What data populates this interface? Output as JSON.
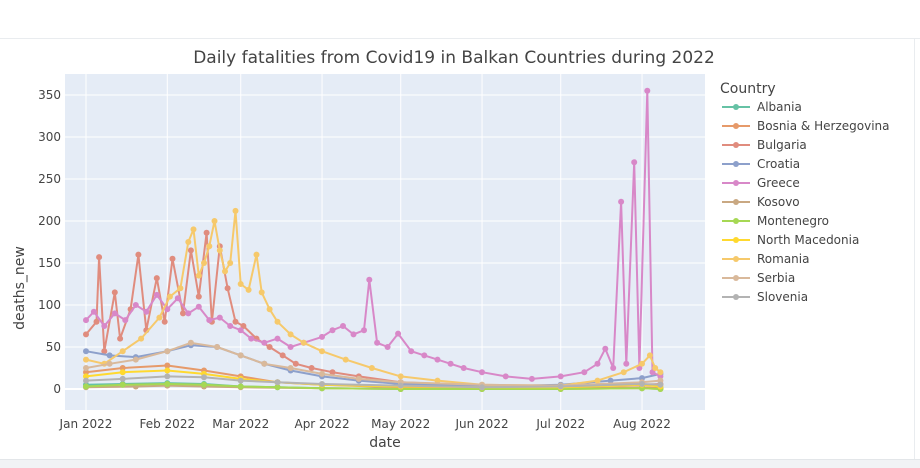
{
  "chart_data": {
    "type": "line",
    "title": "Daily fatalities from Covid19 in Balkan Countries during 2022",
    "xlabel": "date",
    "ylabel": "deaths_new",
    "ylim": [
      -25,
      375
    ],
    "xlim": [
      "2021-12-24",
      "2022-08-25"
    ],
    "yticks": [
      0,
      50,
      100,
      150,
      200,
      250,
      300,
      350
    ],
    "xticks": [
      {
        "date": "2022-01-01",
        "label": "Jan 2022"
      },
      {
        "date": "2022-02-01",
        "label": "Feb 2022"
      },
      {
        "date": "2022-03-01",
        "label": "Mar 2022"
      },
      {
        "date": "2022-04-01",
        "label": "Apr 2022"
      },
      {
        "date": "2022-05-01",
        "label": "May 2022"
      },
      {
        "date": "2022-06-01",
        "label": "Jun 2022"
      },
      {
        "date": "2022-07-01",
        "label": "Jul 2022"
      },
      {
        "date": "2022-08-01",
        "label": "Aug 2022"
      }
    ],
    "grid": true,
    "legend_title": "Country",
    "legend_position": "right",
    "plot_bg": "#e5ecf6",
    "series": [
      {
        "name": "Albania",
        "color": "#66c2a5",
        "points": [
          [
            "2022-01-01",
            5
          ],
          [
            "2022-01-15",
            6
          ],
          [
            "2022-02-01",
            7
          ],
          [
            "2022-02-15",
            6
          ],
          [
            "2022-03-01",
            3
          ],
          [
            "2022-03-15",
            2
          ],
          [
            "2022-04-01",
            1
          ],
          [
            "2022-05-01",
            0
          ],
          [
            "2022-06-01",
            0
          ],
          [
            "2022-07-01",
            1
          ],
          [
            "2022-08-01",
            1
          ],
          [
            "2022-08-08",
            1
          ]
        ]
      },
      {
        "name": "Bosnia & Herzegovina",
        "color": "#e69a6a",
        "points": [
          [
            "2022-01-01",
            20
          ],
          [
            "2022-01-15",
            25
          ],
          [
            "2022-02-01",
            28
          ],
          [
            "2022-02-15",
            22
          ],
          [
            "2022-03-01",
            15
          ],
          [
            "2022-03-15",
            8
          ],
          [
            "2022-04-01",
            5
          ],
          [
            "2022-05-01",
            2
          ],
          [
            "2022-06-01",
            1
          ],
          [
            "2022-07-01",
            1
          ],
          [
            "2022-08-01",
            2
          ],
          [
            "2022-08-08",
            1
          ]
        ]
      },
      {
        "name": "Bulgaria",
        "color": "#e08c7e",
        "points": [
          [
            "2022-01-01",
            65
          ],
          [
            "2022-01-05",
            80
          ],
          [
            "2022-01-06",
            157
          ],
          [
            "2022-01-08",
            45
          ],
          [
            "2022-01-12",
            115
          ],
          [
            "2022-01-14",
            60
          ],
          [
            "2022-01-18",
            95
          ],
          [
            "2022-01-21",
            160
          ],
          [
            "2022-01-24",
            70
          ],
          [
            "2022-01-28",
            132
          ],
          [
            "2022-01-31",
            80
          ],
          [
            "2022-02-03",
            155
          ],
          [
            "2022-02-07",
            90
          ],
          [
            "2022-02-10",
            165
          ],
          [
            "2022-02-13",
            110
          ],
          [
            "2022-02-16",
            186
          ],
          [
            "2022-02-18",
            80
          ],
          [
            "2022-02-21",
            170
          ],
          [
            "2022-02-24",
            120
          ],
          [
            "2022-02-27",
            80
          ],
          [
            "2022-03-02",
            75
          ],
          [
            "2022-03-07",
            60
          ],
          [
            "2022-03-12",
            50
          ],
          [
            "2022-03-17",
            40
          ],
          [
            "2022-03-22",
            30
          ],
          [
            "2022-03-28",
            25
          ],
          [
            "2022-04-05",
            20
          ],
          [
            "2022-04-15",
            15
          ],
          [
            "2022-05-01",
            8
          ],
          [
            "2022-06-01",
            4
          ],
          [
            "2022-07-01",
            3
          ],
          [
            "2022-08-01",
            5
          ],
          [
            "2022-08-08",
            6
          ]
        ]
      },
      {
        "name": "Croatia",
        "color": "#8da0cb",
        "points": [
          [
            "2022-01-01",
            45
          ],
          [
            "2022-01-10",
            40
          ],
          [
            "2022-01-20",
            38
          ],
          [
            "2022-02-01",
            45
          ],
          [
            "2022-02-10",
            52
          ],
          [
            "2022-02-20",
            50
          ],
          [
            "2022-03-01",
            40
          ],
          [
            "2022-03-10",
            30
          ],
          [
            "2022-03-20",
            22
          ],
          [
            "2022-04-01",
            15
          ],
          [
            "2022-04-15",
            10
          ],
          [
            "2022-05-01",
            6
          ],
          [
            "2022-06-01",
            3
          ],
          [
            "2022-07-01",
            5
          ],
          [
            "2022-07-20",
            10
          ],
          [
            "2022-08-01",
            13
          ],
          [
            "2022-08-08",
            18
          ]
        ]
      },
      {
        "name": "Greece",
        "color": "#d888c8",
        "points": [
          [
            "2022-01-01",
            82
          ],
          [
            "2022-01-04",
            92
          ],
          [
            "2022-01-08",
            75
          ],
          [
            "2022-01-12",
            90
          ],
          [
            "2022-01-16",
            82
          ],
          [
            "2022-01-20",
            100
          ],
          [
            "2022-01-24",
            92
          ],
          [
            "2022-01-28",
            112
          ],
          [
            "2022-02-01",
            95
          ],
          [
            "2022-02-05",
            108
          ],
          [
            "2022-02-09",
            90
          ],
          [
            "2022-02-13",
            98
          ],
          [
            "2022-02-17",
            82
          ],
          [
            "2022-02-21",
            85
          ],
          [
            "2022-02-25",
            75
          ],
          [
            "2022-03-01",
            70
          ],
          [
            "2022-03-05",
            60
          ],
          [
            "2022-03-10",
            55
          ],
          [
            "2022-03-15",
            60
          ],
          [
            "2022-03-20",
            50
          ],
          [
            "2022-03-25",
            55
          ],
          [
            "2022-04-01",
            62
          ],
          [
            "2022-04-05",
            70
          ],
          [
            "2022-04-09",
            75
          ],
          [
            "2022-04-13",
            65
          ],
          [
            "2022-04-17",
            70
          ],
          [
            "2022-04-19",
            130
          ],
          [
            "2022-04-22",
            55
          ],
          [
            "2022-04-26",
            50
          ],
          [
            "2022-04-30",
            66
          ],
          [
            "2022-05-05",
            45
          ],
          [
            "2022-05-10",
            40
          ],
          [
            "2022-05-15",
            35
          ],
          [
            "2022-05-20",
            30
          ],
          [
            "2022-05-25",
            25
          ],
          [
            "2022-06-01",
            20
          ],
          [
            "2022-06-10",
            15
          ],
          [
            "2022-06-20",
            12
          ],
          [
            "2022-07-01",
            15
          ],
          [
            "2022-07-10",
            20
          ],
          [
            "2022-07-15",
            30
          ],
          [
            "2022-07-18",
            48
          ],
          [
            "2022-07-21",
            25
          ],
          [
            "2022-07-24",
            223
          ],
          [
            "2022-07-26",
            30
          ],
          [
            "2022-07-29",
            270
          ],
          [
            "2022-07-31",
            25
          ],
          [
            "2022-08-03",
            355
          ],
          [
            "2022-08-05",
            20
          ],
          [
            "2022-08-08",
            15
          ]
        ]
      },
      {
        "name": "Kosovo",
        "color": "#c9a882",
        "points": [
          [
            "2022-01-01",
            2
          ],
          [
            "2022-01-20",
            3
          ],
          [
            "2022-02-01",
            4
          ],
          [
            "2022-02-15",
            3
          ],
          [
            "2022-03-01",
            2
          ],
          [
            "2022-04-01",
            1
          ],
          [
            "2022-05-01",
            0
          ],
          [
            "2022-06-01",
            0
          ],
          [
            "2022-07-01",
            0
          ],
          [
            "2022-08-01",
            1
          ],
          [
            "2022-08-08",
            0
          ]
        ]
      },
      {
        "name": "Montenegro",
        "color": "#a6d854",
        "points": [
          [
            "2022-01-01",
            3
          ],
          [
            "2022-01-15",
            5
          ],
          [
            "2022-02-01",
            6
          ],
          [
            "2022-02-15",
            5
          ],
          [
            "2022-03-01",
            3
          ],
          [
            "2022-03-15",
            2
          ],
          [
            "2022-04-01",
            1
          ],
          [
            "2022-05-01",
            0
          ],
          [
            "2022-06-01",
            0
          ],
          [
            "2022-07-01",
            0
          ],
          [
            "2022-08-01",
            1
          ],
          [
            "2022-08-08",
            0
          ]
        ]
      },
      {
        "name": "North Macedonia",
        "color": "#ffd92f",
        "points": [
          [
            "2022-01-01",
            15
          ],
          [
            "2022-01-15",
            20
          ],
          [
            "2022-02-01",
            22
          ],
          [
            "2022-02-15",
            18
          ],
          [
            "2022-03-01",
            12
          ],
          [
            "2022-03-15",
            8
          ],
          [
            "2022-04-01",
            5
          ],
          [
            "2022-05-01",
            3
          ],
          [
            "2022-06-01",
            2
          ],
          [
            "2022-07-01",
            2
          ],
          [
            "2022-08-01",
            5
          ],
          [
            "2022-08-08",
            3
          ]
        ]
      },
      {
        "name": "Romania",
        "color": "#f6c96b",
        "points": [
          [
            "2022-01-01",
            35
          ],
          [
            "2022-01-08",
            30
          ],
          [
            "2022-01-15",
            45
          ],
          [
            "2022-01-22",
            60
          ],
          [
            "2022-01-29",
            85
          ],
          [
            "2022-02-02",
            110
          ],
          [
            "2022-02-06",
            120
          ],
          [
            "2022-02-09",
            175
          ],
          [
            "2022-02-11",
            190
          ],
          [
            "2022-02-13",
            135
          ],
          [
            "2022-02-15",
            150
          ],
          [
            "2022-02-17",
            170
          ],
          [
            "2022-02-19",
            200
          ],
          [
            "2022-02-21",
            165
          ],
          [
            "2022-02-23",
            140
          ],
          [
            "2022-02-25",
            150
          ],
          [
            "2022-02-27",
            212
          ],
          [
            "2022-03-01",
            125
          ],
          [
            "2022-03-04",
            118
          ],
          [
            "2022-03-07",
            160
          ],
          [
            "2022-03-09",
            115
          ],
          [
            "2022-03-12",
            95
          ],
          [
            "2022-03-15",
            80
          ],
          [
            "2022-03-20",
            65
          ],
          [
            "2022-03-25",
            55
          ],
          [
            "2022-04-01",
            45
          ],
          [
            "2022-04-10",
            35
          ],
          [
            "2022-04-20",
            25
          ],
          [
            "2022-05-01",
            15
          ],
          [
            "2022-05-15",
            10
          ],
          [
            "2022-06-01",
            5
          ],
          [
            "2022-07-01",
            4
          ],
          [
            "2022-07-15",
            10
          ],
          [
            "2022-07-25",
            20
          ],
          [
            "2022-08-01",
            30
          ],
          [
            "2022-08-04",
            40
          ],
          [
            "2022-08-06",
            25
          ],
          [
            "2022-08-08",
            20
          ]
        ]
      },
      {
        "name": "Serbia",
        "color": "#d9b99b",
        "points": [
          [
            "2022-01-01",
            25
          ],
          [
            "2022-01-10",
            30
          ],
          [
            "2022-01-20",
            35
          ],
          [
            "2022-02-01",
            45
          ],
          [
            "2022-02-10",
            55
          ],
          [
            "2022-02-20",
            50
          ],
          [
            "2022-03-01",
            40
          ],
          [
            "2022-03-10",
            30
          ],
          [
            "2022-03-20",
            25
          ],
          [
            "2022-04-01",
            18
          ],
          [
            "2022-04-15",
            12
          ],
          [
            "2022-05-01",
            8
          ],
          [
            "2022-06-01",
            5
          ],
          [
            "2022-07-01",
            4
          ],
          [
            "2022-08-01",
            8
          ],
          [
            "2022-08-08",
            10
          ]
        ]
      },
      {
        "name": "Slovenia",
        "color": "#b3b3b3",
        "points": [
          [
            "2022-01-01",
            10
          ],
          [
            "2022-01-15",
            12
          ],
          [
            "2022-02-01",
            15
          ],
          [
            "2022-02-15",
            14
          ],
          [
            "2022-03-01",
            10
          ],
          [
            "2022-03-15",
            8
          ],
          [
            "2022-04-01",
            6
          ],
          [
            "2022-05-01",
            4
          ],
          [
            "2022-06-01",
            2
          ],
          [
            "2022-07-01",
            3
          ],
          [
            "2022-08-01",
            6
          ],
          [
            "2022-08-08",
            5
          ]
        ]
      }
    ]
  }
}
